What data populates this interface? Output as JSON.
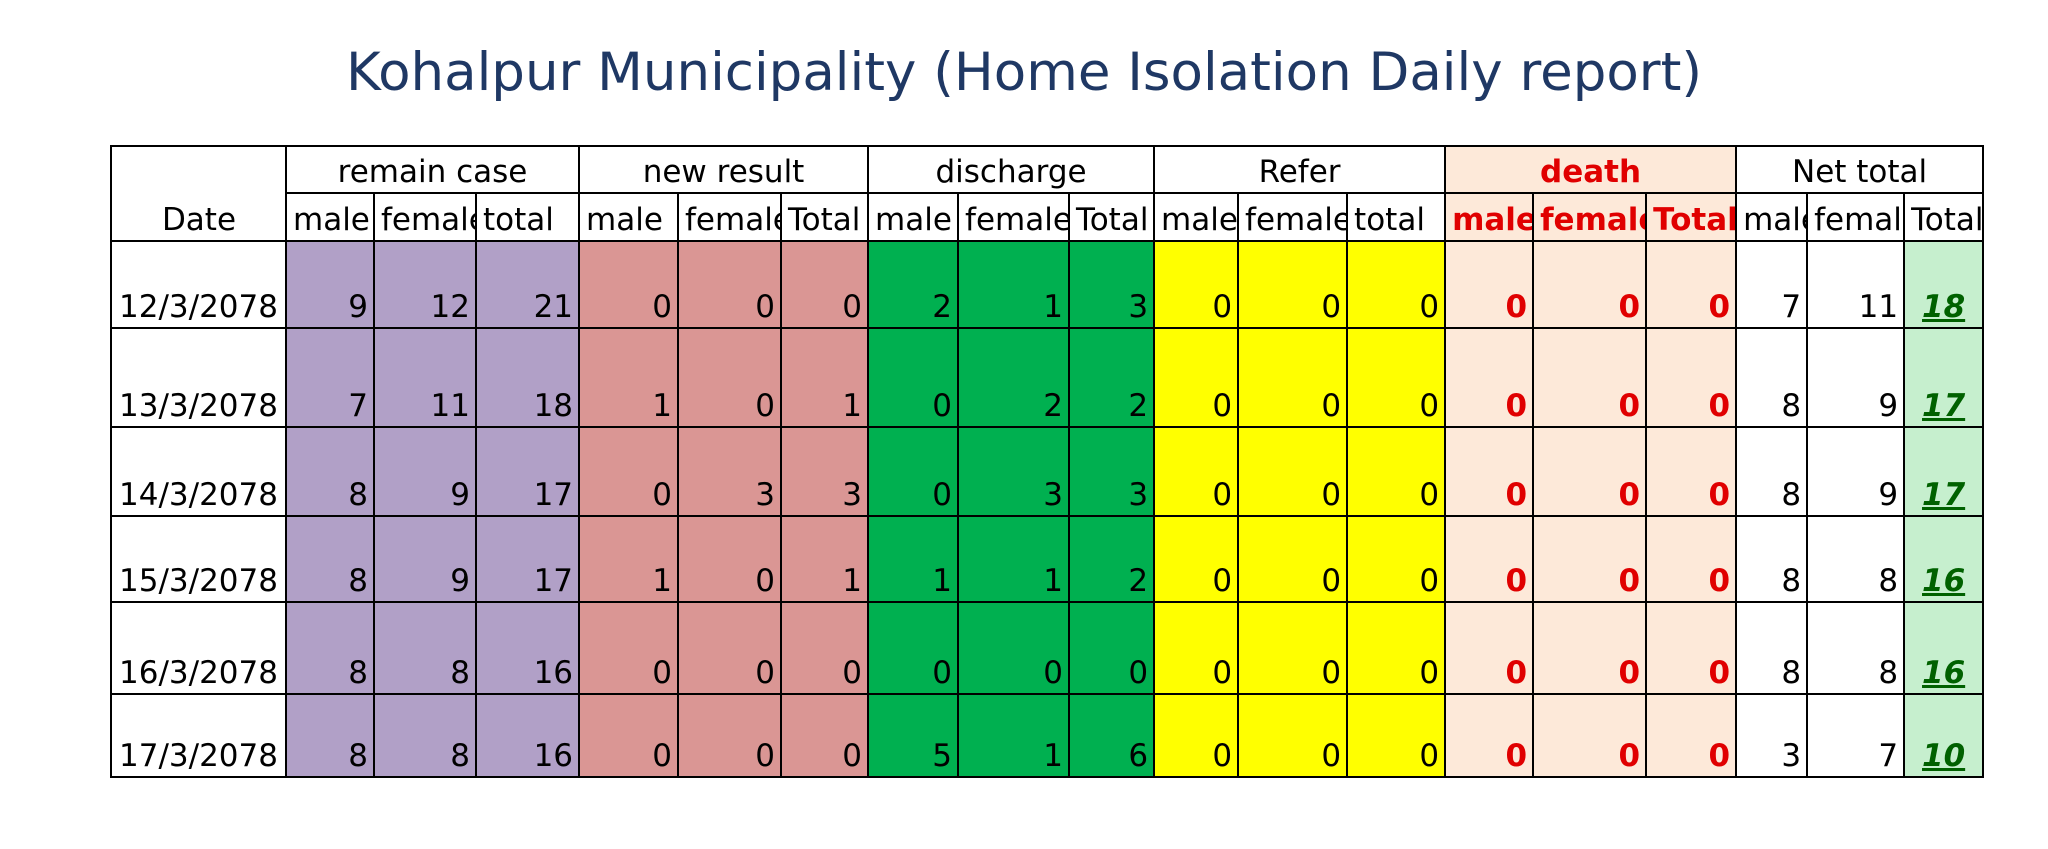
{
  "title": "Kohalpur  Municipality (Home Isolation Daily report)",
  "headers": {
    "date": "Date",
    "groups": [
      "remain case",
      "new result",
      "discharge",
      "Refer",
      "death",
      "Net total"
    ],
    "sub": [
      "male",
      "female",
      "total",
      "male",
      "female",
      "Total",
      "male",
      "female",
      "Total",
      "male",
      "female",
      "total",
      "male",
      "female",
      "Total",
      "male",
      "female",
      "Total"
    ]
  },
  "colors": {
    "remain_case": "#b1a0c7",
    "new_result": "#da9694",
    "discharge": "#00b050",
    "refer": "#ffff00",
    "death": "#fde9d9",
    "death_text": "#e00000",
    "net_total": "#c6efce",
    "net_total_text": "#006100",
    "title_text": "#1f3864"
  },
  "rows": [
    {
      "date": "12/3/2078",
      "remain": [
        9,
        12,
        21
      ],
      "new": [
        0,
        0,
        0
      ],
      "discharge": [
        2,
        1,
        3
      ],
      "refer": [
        0,
        0,
        0
      ],
      "death": [
        0,
        0,
        0
      ],
      "net": [
        7,
        11,
        18
      ]
    },
    {
      "date": "13/3/2078",
      "remain": [
        7,
        11,
        18
      ],
      "new": [
        1,
        0,
        1
      ],
      "discharge": [
        0,
        2,
        2
      ],
      "refer": [
        0,
        0,
        0
      ],
      "death": [
        0,
        0,
        0
      ],
      "net": [
        8,
        9,
        17
      ]
    },
    {
      "date": "14/3/2078",
      "remain": [
        8,
        9,
        17
      ],
      "new": [
        0,
        3,
        3
      ],
      "discharge": [
        0,
        3,
        3
      ],
      "refer": [
        0,
        0,
        0
      ],
      "death": [
        0,
        0,
        0
      ],
      "net": [
        8,
        9,
        17
      ]
    },
    {
      "date": "15/3/2078",
      "remain": [
        8,
        9,
        17
      ],
      "new": [
        1,
        0,
        1
      ],
      "discharge": [
        1,
        1,
        2
      ],
      "refer": [
        0,
        0,
        0
      ],
      "death": [
        0,
        0,
        0
      ],
      "net": [
        8,
        8,
        16
      ]
    },
    {
      "date": "16/3/2078",
      "remain": [
        8,
        8,
        16
      ],
      "new": [
        0,
        0,
        0
      ],
      "discharge": [
        0,
        0,
        0
      ],
      "refer": [
        0,
        0,
        0
      ],
      "death": [
        0,
        0,
        0
      ],
      "net": [
        8,
        8,
        16
      ]
    },
    {
      "date": "17/3/2078",
      "remain": [
        8,
        8,
        16
      ],
      "new": [
        0,
        0,
        0
      ],
      "discharge": [
        5,
        1,
        6
      ],
      "refer": [
        0,
        0,
        0
      ],
      "death": [
        0,
        0,
        0
      ],
      "net": [
        3,
        7,
        10
      ]
    }
  ]
}
